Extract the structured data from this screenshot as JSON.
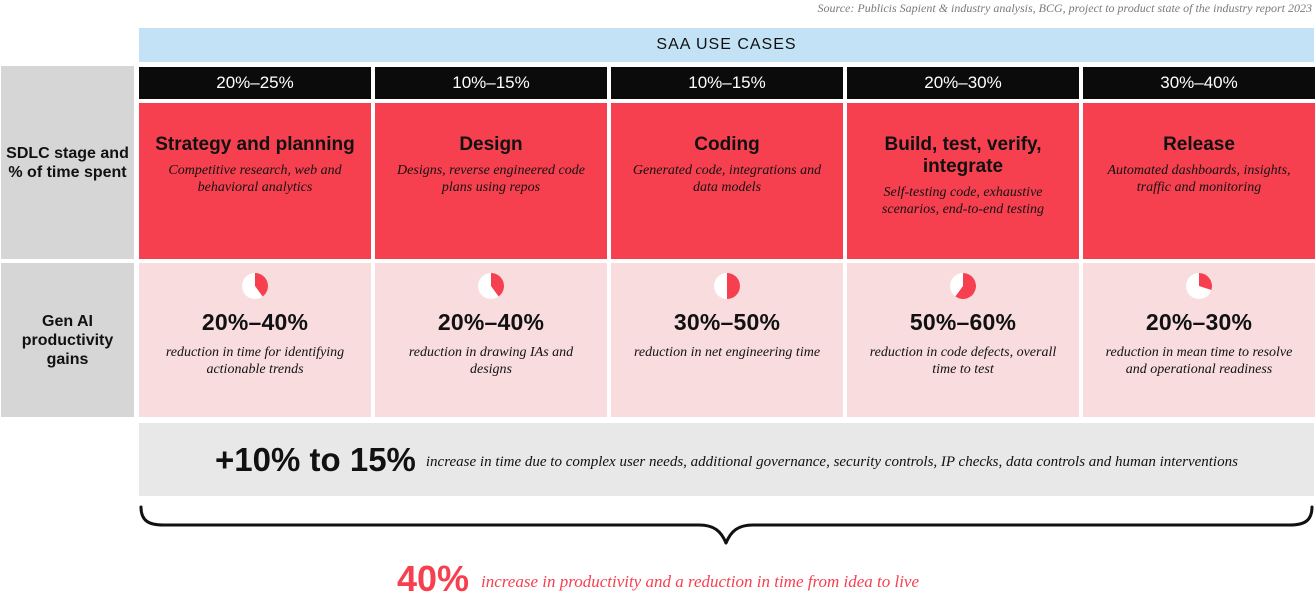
{
  "source": "Source: Publicis Sapient & industry analysis, BCG, project to product state of the industry report 2023",
  "header": "SAA USE CASES",
  "row_labels": {
    "stage": "SDLC stage and % of time spent",
    "gains": "Gen AI productivity gains"
  },
  "stages": [
    {
      "pct": "20%–25%",
      "title": "Strategy and planning",
      "desc": "Competitive research, web and behavioral analytics",
      "gain": "20%–40%",
      "gain_desc": "reduction in time for identifying actionable trends",
      "pie_fraction": 0.4
    },
    {
      "pct": "10%–15%",
      "title": "Design",
      "desc": "Designs, reverse engineered code plans using repos",
      "gain": "20%–40%",
      "gain_desc": "reduction in drawing IAs and designs",
      "pie_fraction": 0.4
    },
    {
      "pct": "10%–15%",
      "title": "Coding",
      "desc": "Generated code, integrations and data models",
      "gain": "30%–50%",
      "gain_desc": "reduction in net engineering time",
      "pie_fraction": 0.5
    },
    {
      "pct": "20%–30%",
      "title": "Build, test, verify, integrate",
      "desc": "Self-testing code, exhaustive scenarios, end-to-end testing",
      "gain": "50%–60%",
      "gain_desc": "reduction in code defects, overall time to test",
      "pie_fraction": 0.6
    },
    {
      "pct": "30%–40%",
      "title": "Release",
      "desc": "Automated dashboards, insights, traffic and monitoring",
      "gain": "20%–30%",
      "gain_desc": "reduction in mean time to resolve and operational readiness",
      "pie_fraction": 0.3
    }
  ],
  "increase": {
    "value": "+10% to 15%",
    "text": "increase in time due to complex user needs, additional governance, security controls, IP checks, data controls and human interventions"
  },
  "footer": {
    "value": "40%",
    "text": "increase in productivity and a reduction in time from idea to live"
  },
  "colors": {
    "accent_red": "#f7404f",
    "header_blue": "#c3e2f5",
    "gain_pink": "#f8dcde",
    "label_gray": "#d6d6d6"
  }
}
